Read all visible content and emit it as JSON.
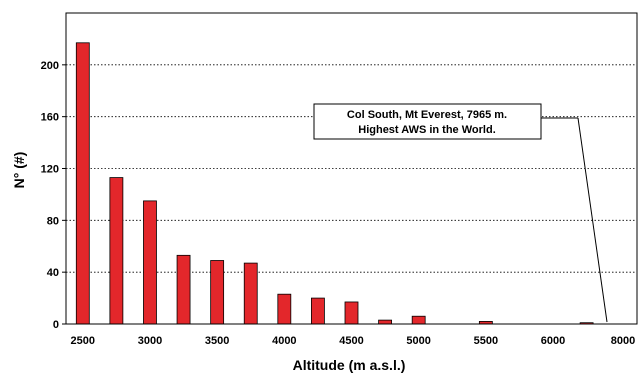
{
  "chart_data": {
    "type": "bar",
    "title": "",
    "xlabel": "Altitude (m a.s.l.)",
    "ylabel": "N° (#)",
    "ylim": [
      0,
      240
    ],
    "yticks": [
      0,
      40,
      80,
      120,
      160,
      200
    ],
    "grid": "horizontal dotted",
    "bar_color": "#e3272b",
    "categories": [
      "2500",
      "2750",
      "3000",
      "3250",
      "3500",
      "3750",
      "4000",
      "4250",
      "4500",
      "4750",
      "5000",
      "5250",
      "5500",
      "5750",
      "6000",
      "6250",
      "6500"
    ],
    "values": [
      217,
      113,
      95,
      53,
      49,
      47,
      23,
      20,
      17,
      3,
      6,
      0,
      2,
      0,
      0,
      1,
      0
    ],
    "xtick_labels": [
      "2500",
      "3000",
      "3500",
      "4000",
      "4500",
      "5000",
      "5500",
      "6000",
      "8000"
    ],
    "annotation": {
      "lines": [
        "Col South, Mt Everest, 7965 m.",
        "Highest AWS in the World."
      ]
    }
  }
}
